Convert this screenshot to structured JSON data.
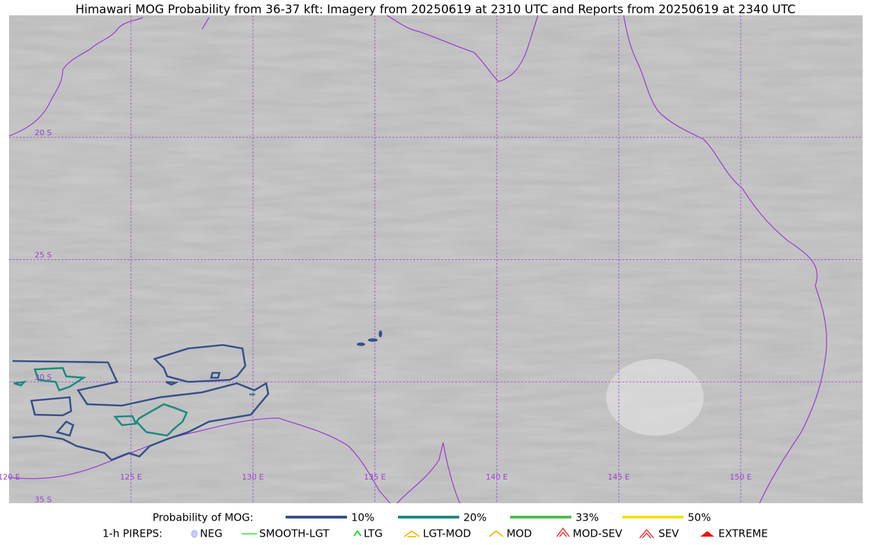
{
  "title": "Himawari MOG Probability from 36-37 kft: Imagery from 20250619 at 2310 UTC and Reports from 20250619 at 2340 UTC",
  "lat_labels": [
    "20 S",
    "25 S",
    "30 S",
    "35 S"
  ],
  "lon_labels": [
    "120 E",
    "125 E",
    "130 E",
    "135 E",
    "140 E",
    "145 E",
    "150 E"
  ],
  "legend": {
    "mog_label": "Probability of MOG:",
    "mog_levels": [
      {
        "label": "10%",
        "color": "#35508a"
      },
      {
        "label": "20%",
        "color": "#1a8a80"
      },
      {
        "label": "33%",
        "color": "#4cc050"
      },
      {
        "label": "50%",
        "color": "#f5e000"
      }
    ],
    "pirep_label": "1-h PIREPS:",
    "pireps": [
      "NEG",
      "SMOOTH-LGT",
      "LTG",
      "LGT-MOD",
      "MOD",
      "MOD-SEV",
      "SEV",
      "EXTREME"
    ]
  }
}
